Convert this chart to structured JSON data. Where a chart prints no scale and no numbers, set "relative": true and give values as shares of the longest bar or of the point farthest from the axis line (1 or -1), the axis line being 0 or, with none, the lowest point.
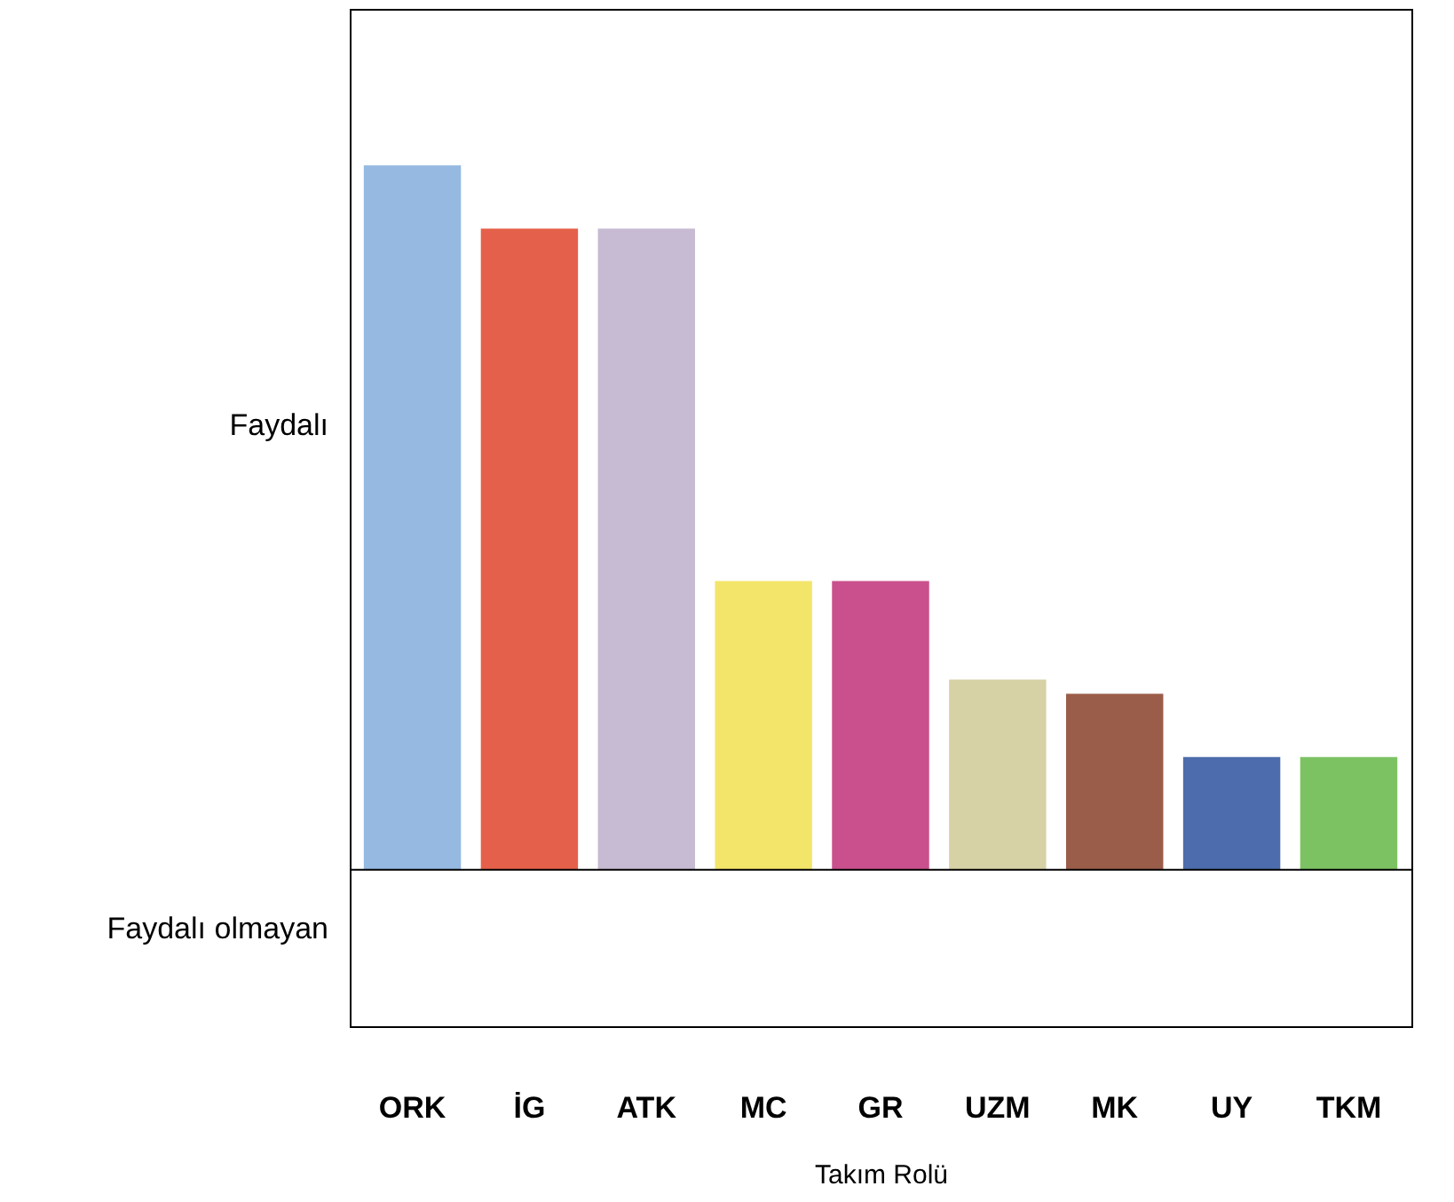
{
  "chart_data": {
    "type": "bar",
    "xlabel": "Takım Rolü",
    "relative": true,
    "categories": [
      "ORK",
      "İG",
      "ATK",
      "MC",
      "GR",
      "UZM",
      "MK",
      "UY",
      "TKM"
    ],
    "values": [
      1,
      0.91,
      0.91,
      0.41,
      0.41,
      0.27,
      0.25,
      0.16,
      0.16
    ],
    "colors": [
      "#95b9e0",
      "#e5604a",
      "#c7bad3",
      "#f3e56a",
      "#c9508c",
      "#d6d2a6",
      "#9a5d49",
      "#4d6cad",
      "#7dc262"
    ],
    "annotations": [
      "Faydalı",
      "Faydalı olmayan"
    ]
  }
}
